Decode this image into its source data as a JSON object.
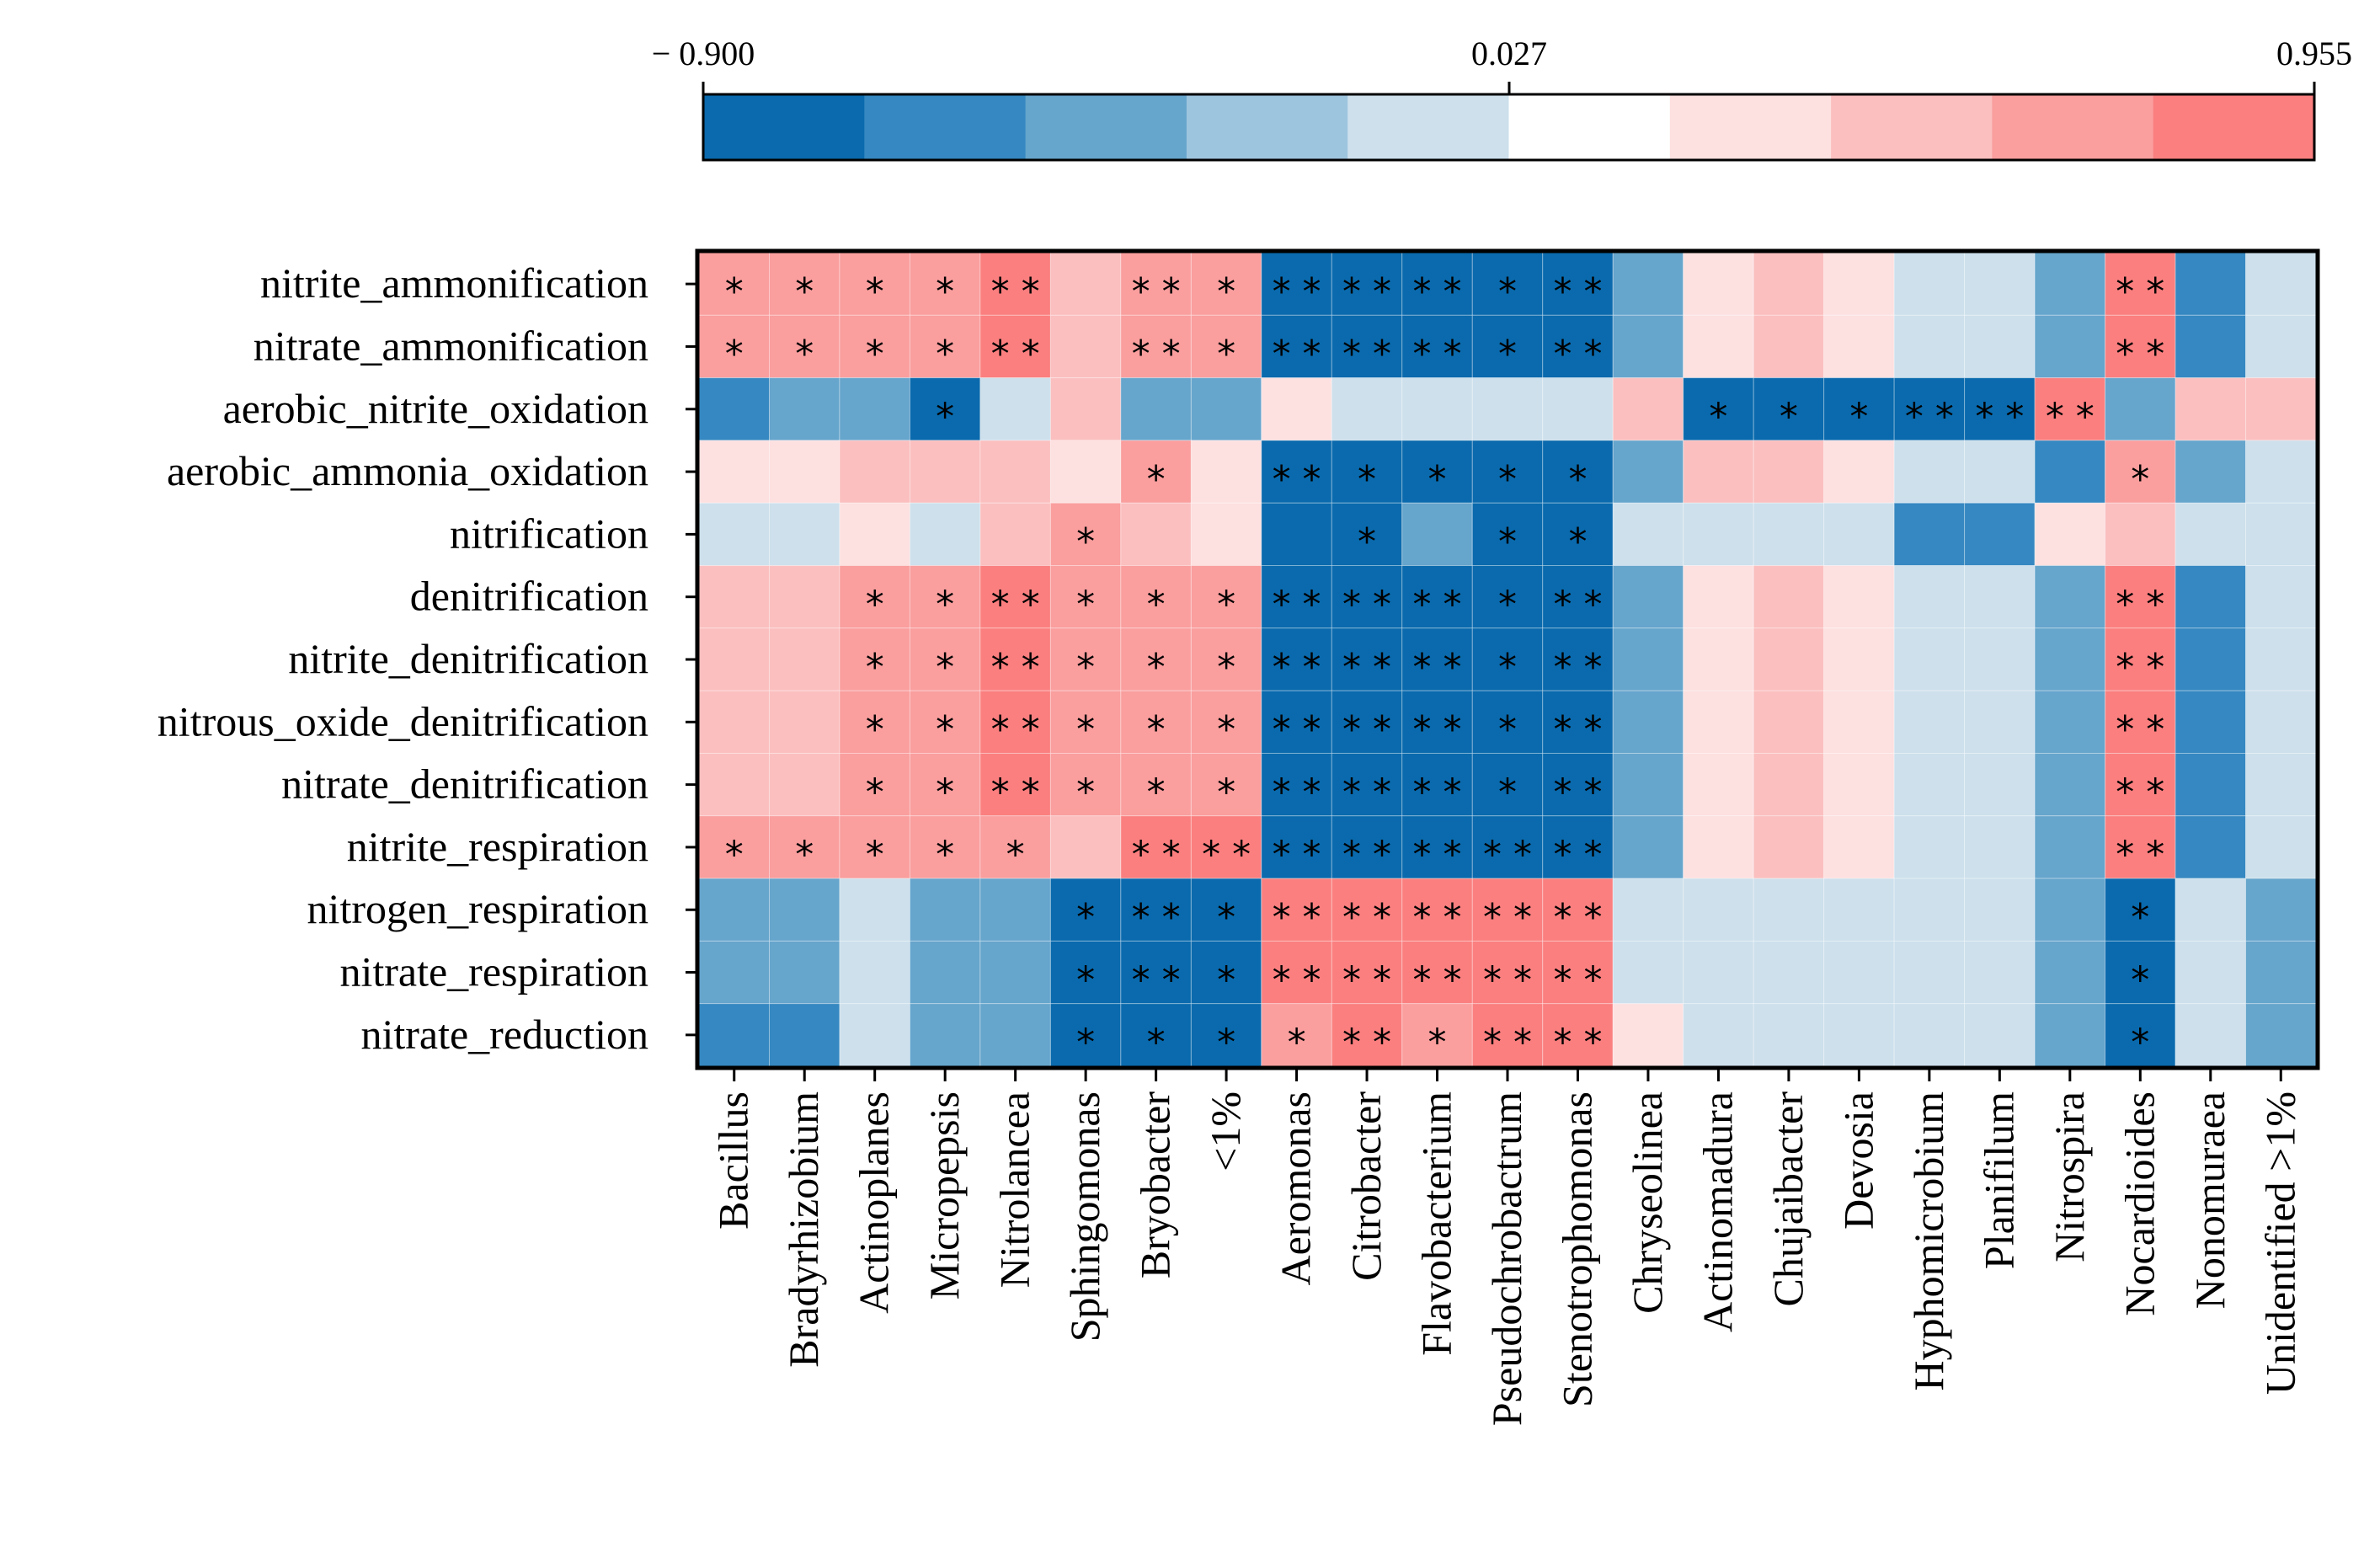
{
  "chart_data": {
    "type": "heatmap",
    "title": "",
    "colorbar": {
      "min": -0.9,
      "mid": 0.027,
      "max": 0.955,
      "tick_labels": [
        "− 0.900",
        "0.027",
        "0.955"
      ],
      "colors": [
        "#0a6aad",
        "#3588c1",
        "#66a5cc",
        "#9ec5de",
        "#cde0ec",
        "#ffffff",
        "#fde0e0",
        "#fbbfbf",
        "#fa9e9e",
        "#fb7f7f"
      ]
    },
    "rows": [
      "nitrite_ammonification",
      "nitrate_ammonification",
      "aerobic_nitrite_oxidation",
      "aerobic_ammonia_oxidation",
      "nitrification",
      "denitrification",
      "nitrite_denitrification",
      "nitrous_oxide_denitrification",
      "nitrate_denitrification",
      "nitrite_respiration",
      "nitrogen_respiration",
      "nitrate_respiration",
      "nitrate_reduction"
    ],
    "columns": [
      "Bacillus",
      "Bradyrhizobium",
      "Actinoplanes",
      "Micropepsis",
      "Nitrolancea",
      "Sphingomonas",
      "Bryobacter",
      "<1%",
      "Aeromonas",
      "Citrobacter",
      "Flavobacterium",
      "Pseudochrobactrum",
      "Stenotrophomonas",
      "Chryseolinea",
      "Actinomadura",
      "Chujaibacter",
      "Devosia",
      "Hyphomicrobium",
      "Planifilum",
      "Nitrospira",
      "Nocardioides",
      "Nonomuraea",
      "Unidentified >1%"
    ],
    "values": [
      [
        0.75,
        0.75,
        0.75,
        0.75,
        0.9,
        0.55,
        0.75,
        0.75,
        -0.9,
        -0.9,
        -0.9,
        -0.75,
        -0.9,
        -0.5,
        0.3,
        0.5,
        0.3,
        0.0,
        0.0,
        -0.35,
        0.9,
        -0.6,
        -0.15
      ],
      [
        0.75,
        0.75,
        0.75,
        0.75,
        0.9,
        0.55,
        0.75,
        0.75,
        -0.9,
        -0.9,
        -0.9,
        -0.75,
        -0.9,
        -0.5,
        0.3,
        0.5,
        0.3,
        0.0,
        0.0,
        -0.35,
        0.9,
        -0.6,
        -0.15
      ],
      [
        -0.65,
        -0.5,
        -0.5,
        -0.85,
        -0.15,
        0.5,
        -0.5,
        -0.35,
        0.3,
        0.0,
        0.0,
        0.0,
        -0.15,
        0.5,
        -0.85,
        -0.75,
        -0.75,
        -0.9,
        -0.9,
        0.9,
        -0.35,
        0.55,
        0.55
      ],
      [
        0.3,
        0.3,
        0.5,
        0.5,
        0.5,
        0.3,
        0.75,
        0.3,
        -0.9,
        -0.9,
        -0.9,
        -0.75,
        -0.75,
        -0.35,
        0.5,
        0.5,
        0.3,
        0.0,
        0.0,
        -0.6,
        0.75,
        -0.35,
        -0.15
      ],
      [
        0.0,
        0.0,
        0.3,
        0.0,
        0.5,
        0.75,
        0.5,
        0.3,
        -0.75,
        -0.75,
        -0.5,
        -0.75,
        -0.75,
        -0.15,
        -0.15,
        -0.15,
        -0.15,
        -0.55,
        -0.55,
        0.3,
        0.5,
        -0.15,
        0.0
      ],
      [
        0.55,
        0.55,
        0.75,
        0.75,
        0.9,
        0.75,
        0.75,
        0.75,
        -0.9,
        -0.9,
        -0.9,
        -0.75,
        -0.9,
        -0.5,
        0.3,
        0.5,
        0.3,
        0.0,
        -0.15,
        -0.35,
        0.9,
        -0.6,
        0.0
      ],
      [
        0.55,
        0.55,
        0.75,
        0.75,
        0.9,
        0.75,
        0.75,
        0.75,
        -0.9,
        -0.9,
        -0.9,
        -0.75,
        -0.9,
        -0.5,
        0.3,
        0.5,
        0.3,
        0.0,
        -0.15,
        -0.35,
        0.9,
        -0.6,
        0.0
      ],
      [
        0.55,
        0.55,
        0.75,
        0.75,
        0.9,
        0.75,
        0.75,
        0.75,
        -0.9,
        -0.9,
        -0.9,
        -0.75,
        -0.9,
        -0.5,
        0.3,
        0.5,
        0.3,
        0.0,
        -0.15,
        -0.35,
        0.9,
        -0.6,
        0.0
      ],
      [
        0.55,
        0.55,
        0.75,
        0.75,
        0.9,
        0.75,
        0.75,
        0.75,
        -0.9,
        -0.9,
        -0.9,
        -0.75,
        -0.9,
        -0.5,
        0.3,
        0.5,
        0.3,
        0.0,
        -0.15,
        -0.35,
        0.9,
        -0.6,
        0.0
      ],
      [
        0.75,
        0.75,
        0.75,
        0.75,
        0.75,
        0.55,
        0.9,
        0.9,
        -0.9,
        -0.9,
        -0.9,
        -0.9,
        -0.9,
        -0.5,
        0.3,
        0.5,
        0.3,
        0.0,
        0.0,
        -0.35,
        0.9,
        -0.6,
        0.0
      ],
      [
        -0.35,
        -0.5,
        -0.15,
        -0.35,
        -0.5,
        -0.75,
        -0.9,
        -0.75,
        0.9,
        0.9,
        0.9,
        0.9,
        0.9,
        0.0,
        0.0,
        -0.15,
        0.0,
        0.0,
        0.0,
        -0.35,
        -0.75,
        0.0,
        -0.35
      ],
      [
        -0.35,
        -0.5,
        -0.15,
        -0.35,
        -0.5,
        -0.75,
        -0.9,
        -0.75,
        0.9,
        0.9,
        0.9,
        0.9,
        0.9,
        0.0,
        0.0,
        -0.15,
        0.0,
        0.0,
        0.0,
        -0.35,
        -0.75,
        0.0,
        -0.35
      ],
      [
        -0.6,
        -0.6,
        -0.15,
        -0.35,
        -0.5,
        -0.75,
        -0.9,
        -0.75,
        0.75,
        0.9,
        0.75,
        0.9,
        0.9,
        0.3,
        -0.15,
        -0.15,
        -0.15,
        -0.15,
        0.0,
        -0.35,
        -0.75,
        0.0,
        -0.35
      ]
    ],
    "significance": [
      [
        "*",
        "*",
        "*",
        "*",
        "**",
        "",
        "**",
        "*",
        "**",
        "**",
        "**",
        "*",
        "**",
        "",
        "",
        "",
        "",
        "",
        "",
        "",
        "**",
        "",
        ""
      ],
      [
        "*",
        "*",
        "*",
        "*",
        "**",
        "",
        "**",
        "*",
        "**",
        "**",
        "**",
        "*",
        "**",
        "",
        "",
        "",
        "",
        "",
        "",
        "",
        "**",
        "",
        ""
      ],
      [
        "",
        "",
        "",
        "*",
        "",
        "",
        "",
        "",
        "",
        "",
        "",
        "",
        "",
        "",
        "*",
        "*",
        "*",
        "**",
        "**",
        "**",
        "",
        "",
        ""
      ],
      [
        "",
        "",
        "",
        "",
        "",
        "",
        "*",
        "",
        "**",
        "*",
        "*",
        "*",
        "*",
        "",
        "",
        "",
        "",
        "",
        "",
        "",
        "*",
        "",
        ""
      ],
      [
        "",
        "",
        "",
        "",
        "",
        "*",
        "",
        "",
        "",
        "*",
        "",
        "*",
        "*",
        "",
        "",
        "",
        "",
        "",
        "",
        "",
        "",
        "",
        ""
      ],
      [
        "",
        "",
        "*",
        "*",
        "**",
        "*",
        "*",
        "*",
        "**",
        "**",
        "**",
        "*",
        "**",
        "",
        "",
        "",
        "",
        "",
        "",
        "",
        "**",
        "",
        ""
      ],
      [
        "",
        "",
        "*",
        "*",
        "**",
        "*",
        "*",
        "*",
        "**",
        "**",
        "**",
        "*",
        "**",
        "",
        "",
        "",
        "",
        "",
        "",
        "",
        "**",
        "",
        ""
      ],
      [
        "",
        "",
        "*",
        "*",
        "**",
        "*",
        "*",
        "*",
        "**",
        "**",
        "**",
        "*",
        "**",
        "",
        "",
        "",
        "",
        "",
        "",
        "",
        "**",
        "",
        ""
      ],
      [
        "",
        "",
        "*",
        "*",
        "**",
        "*",
        "*",
        "*",
        "**",
        "**",
        "**",
        "*",
        "**",
        "",
        "",
        "",
        "",
        "",
        "",
        "",
        "**",
        "",
        ""
      ],
      [
        "*",
        "*",
        "*",
        "*",
        "*",
        "",
        "**",
        "**",
        "**",
        "**",
        "**",
        "**",
        "**",
        "",
        "",
        "",
        "",
        "",
        "",
        "",
        "**",
        "",
        ""
      ],
      [
        "",
        "",
        "",
        "",
        "",
        "*",
        "**",
        "*",
        "**",
        "**",
        "**",
        "**",
        "**",
        "",
        "",
        "",
        "",
        "",
        "",
        "",
        "*",
        "",
        ""
      ],
      [
        "",
        "",
        "",
        "",
        "",
        "*",
        "**",
        "*",
        "**",
        "**",
        "**",
        "**",
        "**",
        "",
        "",
        "",
        "",
        "",
        "",
        "",
        "*",
        "",
        ""
      ],
      [
        "",
        "",
        "",
        "",
        "",
        "*",
        "*",
        "*",
        "*",
        "**",
        "*",
        "**",
        "**",
        "",
        "",
        "",
        "",
        "",
        "",
        "",
        "*",
        "",
        ""
      ]
    ]
  }
}
